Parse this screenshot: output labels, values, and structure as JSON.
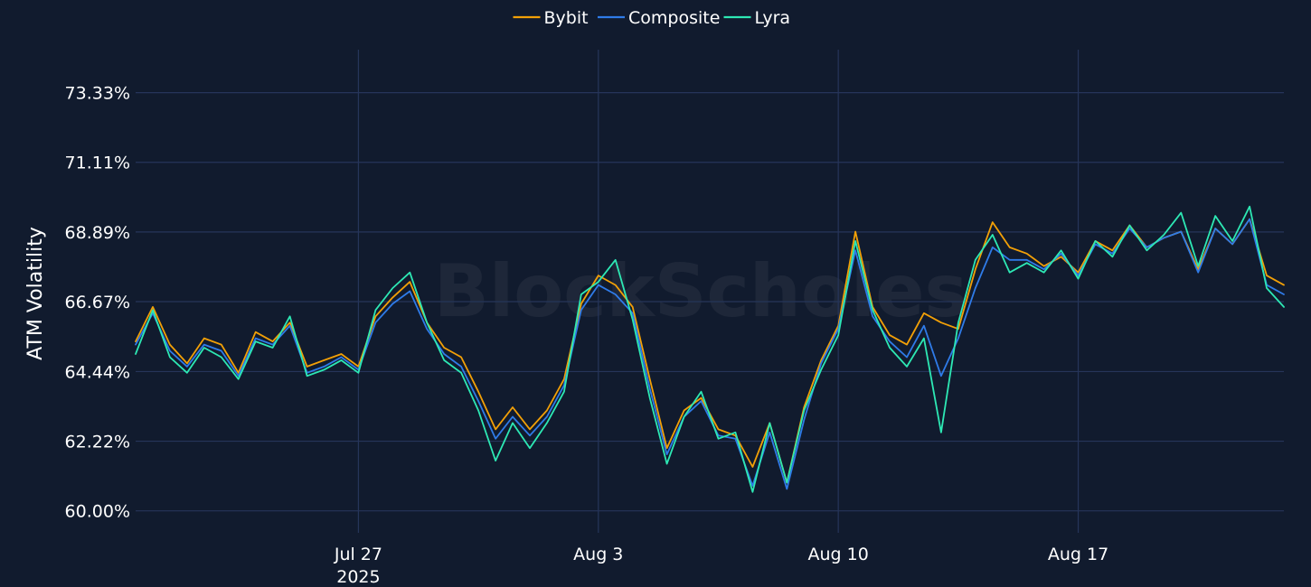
{
  "watermark": "BlockScholes",
  "chart_data": {
    "type": "line",
    "ylabel": "ATM Volatility",
    "y_unit": "%",
    "ylim": [
      59.3,
      74.7
    ],
    "y_ticks": [
      60.0,
      62.22,
      64.44,
      66.67,
      68.89,
      71.11,
      73.33
    ],
    "y_tick_labels": [
      "60.00%",
      "62.22%",
      "64.44%",
      "66.67%",
      "68.89%",
      "71.11%",
      "73.33%"
    ],
    "xlim": [
      "2025-07-20T12:00",
      "2025-08-23T00:00"
    ],
    "x_ticks": [
      "2025-07-27",
      "2025-08-03",
      "2025-08-10",
      "2025-08-17"
    ],
    "x_tick_labels": [
      "Jul 27",
      "Aug 3",
      "Aug 10",
      "Aug 17"
    ],
    "x_year_label": "2025",
    "grid": true,
    "legend_position": "top-center",
    "x": [
      "2025-07-20T12:00",
      "2025-07-21T00:00",
      "2025-07-21T12:00",
      "2025-07-22T00:00",
      "2025-07-22T12:00",
      "2025-07-23T00:00",
      "2025-07-23T12:00",
      "2025-07-24T00:00",
      "2025-07-24T12:00",
      "2025-07-25T00:00",
      "2025-07-25T12:00",
      "2025-07-26T00:00",
      "2025-07-26T12:00",
      "2025-07-27T00:00",
      "2025-07-27T12:00",
      "2025-07-28T00:00",
      "2025-07-28T12:00",
      "2025-07-29T00:00",
      "2025-07-29T12:00",
      "2025-07-30T00:00",
      "2025-07-30T12:00",
      "2025-07-31T00:00",
      "2025-07-31T12:00",
      "2025-08-01T00:00",
      "2025-08-01T12:00",
      "2025-08-02T00:00",
      "2025-08-02T12:00",
      "2025-08-03T00:00",
      "2025-08-03T12:00",
      "2025-08-04T00:00",
      "2025-08-04T12:00",
      "2025-08-05T00:00",
      "2025-08-05T12:00",
      "2025-08-06T00:00",
      "2025-08-06T12:00",
      "2025-08-07T00:00",
      "2025-08-07T12:00",
      "2025-08-08T00:00",
      "2025-08-08T12:00",
      "2025-08-09T00:00",
      "2025-08-09T12:00",
      "2025-08-10T00:00",
      "2025-08-10T12:00",
      "2025-08-11T00:00",
      "2025-08-11T12:00",
      "2025-08-12T00:00",
      "2025-08-12T12:00",
      "2025-08-13T00:00",
      "2025-08-13T12:00",
      "2025-08-14T00:00",
      "2025-08-14T12:00",
      "2025-08-15T00:00",
      "2025-08-15T12:00",
      "2025-08-16T00:00",
      "2025-08-16T12:00",
      "2025-08-17T00:00",
      "2025-08-17T12:00",
      "2025-08-18T00:00",
      "2025-08-18T12:00",
      "2025-08-19T00:00",
      "2025-08-19T12:00",
      "2025-08-20T00:00",
      "2025-08-20T12:00",
      "2025-08-21T00:00",
      "2025-08-21T12:00",
      "2025-08-22T00:00",
      "2025-08-22T12:00",
      "2025-08-23T00:00"
    ],
    "series": [
      {
        "name": "Bybit",
        "color": "#f2a007",
        "values": [
          65.4,
          66.5,
          65.3,
          64.7,
          65.5,
          65.3,
          64.4,
          65.7,
          65.4,
          66.0,
          64.6,
          64.8,
          65.0,
          64.6,
          66.2,
          66.8,
          67.3,
          66.0,
          65.2,
          64.9,
          63.8,
          62.6,
          63.3,
          62.6,
          63.2,
          64.2,
          66.6,
          67.5,
          67.2,
          66.5,
          64.2,
          62.0,
          63.2,
          63.6,
          62.6,
          62.4,
          61.4,
          62.8,
          60.9,
          63.3,
          64.8,
          65.9,
          68.9,
          66.5,
          65.6,
          65.3,
          66.3,
          66.0,
          65.8,
          67.7,
          69.2,
          68.4,
          68.2,
          67.8,
          68.1,
          67.6,
          68.6,
          68.3,
          69.1,
          68.4,
          68.7,
          68.9,
          67.7,
          69.0,
          68.5,
          69.3,
          67.5,
          67.2
        ]
      },
      {
        "name": "Composite",
        "color": "#2f7be8",
        "values": [
          65.3,
          66.3,
          65.1,
          64.6,
          65.3,
          65.1,
          64.3,
          65.5,
          65.3,
          65.9,
          64.4,
          64.6,
          64.9,
          64.5,
          66.0,
          66.6,
          67.0,
          65.8,
          65.0,
          64.6,
          63.5,
          62.3,
          63.0,
          62.4,
          63.0,
          64.0,
          66.4,
          67.2,
          66.9,
          66.3,
          63.9,
          61.8,
          63.0,
          63.5,
          62.4,
          62.3,
          60.8,
          62.5,
          60.7,
          62.9,
          64.7,
          65.8,
          68.3,
          66.2,
          65.4,
          64.9,
          65.9,
          64.3,
          65.5,
          67.1,
          68.4,
          68.0,
          68.0,
          67.7,
          68.2,
          67.5,
          68.5,
          68.2,
          69.0,
          68.4,
          68.7,
          68.9,
          67.6,
          69.0,
          68.5,
          69.3,
          67.2,
          66.9
        ]
      },
      {
        "name": "Lyra",
        "color": "#2de8b4",
        "values": [
          65.0,
          66.4,
          64.9,
          64.4,
          65.2,
          64.9,
          64.2,
          65.4,
          65.2,
          66.2,
          64.3,
          64.5,
          64.8,
          64.4,
          66.4,
          67.1,
          67.6,
          66.0,
          64.8,
          64.4,
          63.2,
          61.6,
          62.8,
          62.0,
          62.8,
          63.8,
          66.9,
          67.3,
          68.0,
          66.1,
          63.6,
          61.5,
          63.0,
          63.8,
          62.3,
          62.5,
          60.6,
          62.8,
          60.9,
          63.2,
          64.5,
          65.6,
          68.6,
          66.4,
          65.2,
          64.6,
          65.5,
          62.5,
          66.0,
          68.0,
          68.8,
          67.6,
          67.9,
          67.6,
          68.3,
          67.4,
          68.6,
          68.1,
          69.1,
          68.3,
          68.8,
          69.5,
          67.8,
          69.4,
          68.6,
          69.7,
          67.1,
          66.5
        ]
      }
    ]
  }
}
